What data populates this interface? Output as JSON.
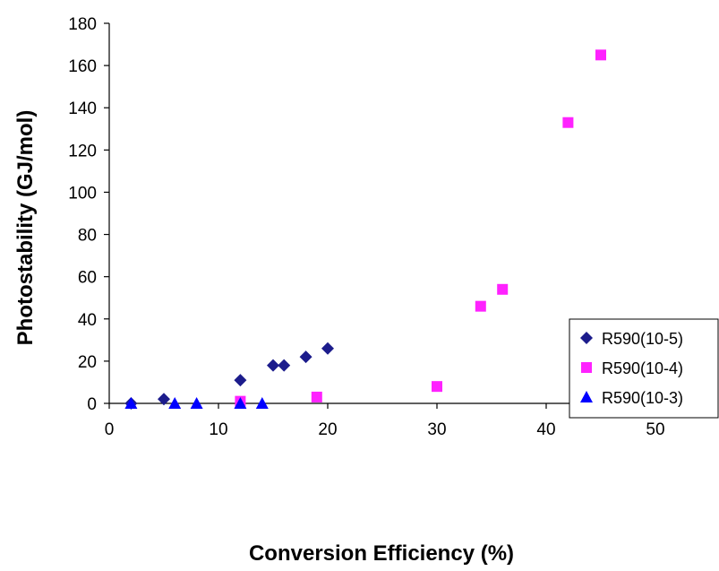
{
  "chart_data": {
    "type": "scatter",
    "title": "",
    "xlabel": "Conversion Efficiency (%)",
    "ylabel": "Photostability (GJ/mol)",
    "xlim": [
      0,
      50
    ],
    "ylim": [
      0,
      180
    ],
    "x_ticks": [
      "0",
      "10",
      "20",
      "30",
      "40",
      "50"
    ],
    "y_ticks": [
      "0",
      "20",
      "40",
      "60",
      "80",
      "100",
      "120",
      "140",
      "160",
      "180"
    ],
    "grid": false,
    "legend_position": "right",
    "series": [
      {
        "name": "R590(10-5)",
        "marker": "diamond",
        "color": "#1c1c8c",
        "points": [
          {
            "x": 2,
            "y": 0
          },
          {
            "x": 5,
            "y": 2
          },
          {
            "x": 12,
            "y": 11
          },
          {
            "x": 15,
            "y": 18
          },
          {
            "x": 16,
            "y": 18
          },
          {
            "x": 18,
            "y": 22
          },
          {
            "x": 20,
            "y": 26
          }
        ]
      },
      {
        "name": "R590(10-4)",
        "marker": "square",
        "color": "#ff22ff",
        "points": [
          {
            "x": 12,
            "y": 1
          },
          {
            "x": 19,
            "y": 3
          },
          {
            "x": 30,
            "y": 8
          },
          {
            "x": 34,
            "y": 46
          },
          {
            "x": 36,
            "y": 54
          },
          {
            "x": 42,
            "y": 133
          },
          {
            "x": 45,
            "y": 165
          }
        ]
      },
      {
        "name": "R590(10-3)",
        "marker": "triangle",
        "color": "#0000ff",
        "points": [
          {
            "x": 2,
            "y": 0
          },
          {
            "x": 6,
            "y": 0
          },
          {
            "x": 8,
            "y": 0
          },
          {
            "x": 12,
            "y": 0
          },
          {
            "x": 14,
            "y": 0
          }
        ]
      }
    ]
  }
}
